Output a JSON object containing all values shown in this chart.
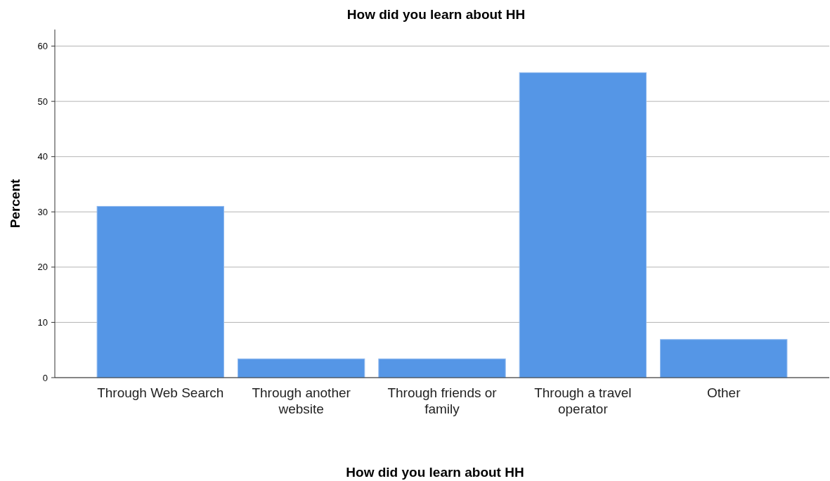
{
  "chart_data": {
    "type": "bar",
    "title": "How did you learn about HH",
    "xlabel": "How did you learn about HH",
    "ylabel": "Percent",
    "categories": [
      "Through Web Search",
      "Through another website",
      "Through friends or family",
      "Through a travel operator",
      "Other"
    ],
    "values": [
      31.0,
      3.4,
      3.4,
      55.2,
      6.9
    ],
    "color": "#5596e6",
    "ylim": [
      0,
      63
    ],
    "yticks": [
      0,
      10,
      20,
      30,
      40,
      50,
      60
    ],
    "grid": "y"
  }
}
